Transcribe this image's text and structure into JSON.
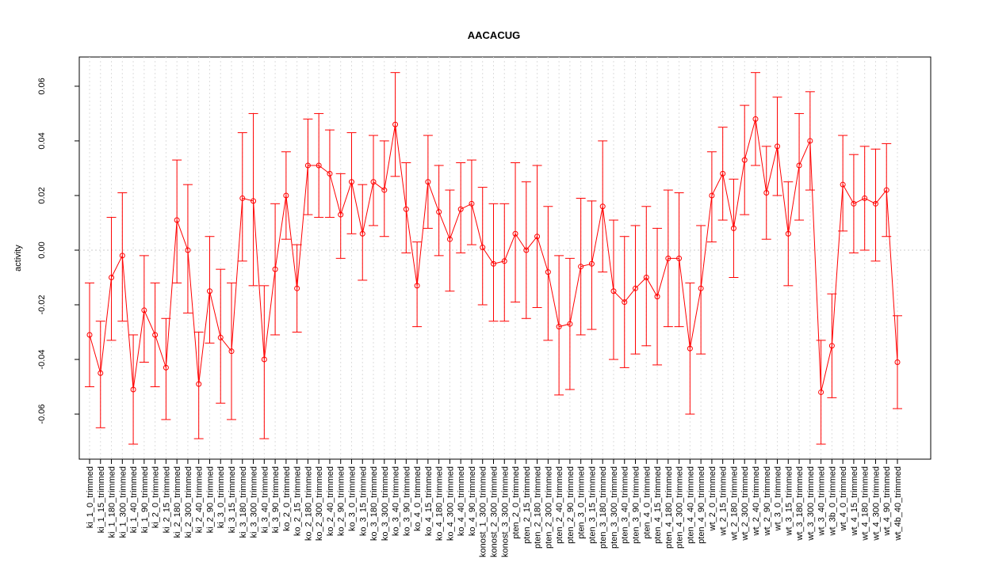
{
  "chart_data": {
    "type": "line",
    "title": "AACACUG",
    "y_label": "activity",
    "color": "#ff0000",
    "grid": true,
    "categories": [
      "ki_1_0_trimmed",
      "ki_1_15_trimmed",
      "ki_1_180_trimmed",
      "ki_1_300_trimmed",
      "ki_1_40_trimmed",
      "ki_1_90_trimmed",
      "ki_2_0_trimmed",
      "ki_2_15_trimmed",
      "ki_2_180_trimmed",
      "ki_2_300_trimmed",
      "ki_2_40_trimmed",
      "ki_2_90_trimmed",
      "ki_3_0_trimmed",
      "ki_3_15_trimmed",
      "ki_3_180_trimmed",
      "ki_3_300_trimmed",
      "ki_3_40_trimmed",
      "ki_3_90_trimmed",
      "ko_2_0_trimmed",
      "ko_2_15_trimmed",
      "ko_2_180_trimmed",
      "ko_2_300_trimmed",
      "ko_2_40_trimmed",
      "ko_2_90_trimmed",
      "ko_3_0_trimmed",
      "ko_3_15_trimmed",
      "ko_3_180_trimmed",
      "ko_3_300_trimmed",
      "ko_3_40_trimmed",
      "ko_3_90_trimmed",
      "ko_4_0_trimmed",
      "ko_4_15_trimmed",
      "ko_4_180_trimmed",
      "ko_4_300_trimmed",
      "ko_4_40_trimmed",
      "ko_4_90_trimmed",
      "konost_1_300_trimmed",
      "konost_2_300_trimmed",
      "konost_3_300_trimmed",
      "pten_2_0_trimmed",
      "pten_2_15_trimmed",
      "pten_2_180_trimmed",
      "pten_2_300_trimmed",
      "pten_2_40_trimmed",
      "pten_2_90_trimmed",
      "pten_3_0_trimmed",
      "pten_3_15_trimmed",
      "pten_3_180_trimmed",
      "pten_3_300_trimmed",
      "pten_3_40_trimmed",
      "pten_3_90_trimmed",
      "pten_4_0_trimmed",
      "pten_4_15_trimmed",
      "pten_4_180_trimmed",
      "pten_4_300_trimmed",
      "pten_4_40_trimmed",
      "pten_4_90_trimmed",
      "wt_2_0_trimmed",
      "wt_2_15_trimmed",
      "wt_2_180_trimmed",
      "wt_2_300_trimmed",
      "wt_2_40_trimmed",
      "wt_2_90_trimmed",
      "wt_3_0_trimmed",
      "wt_3_15_trimmed",
      "wt_3_180_trimmed",
      "wt_3_300_trimmed",
      "wt_3_40_trimmed",
      "wt_3b_0_trimmed",
      "wt_4_0_trimmed",
      "wt_4_15_trimmed",
      "wt_4_180_trimmed",
      "wt_4_300_trimmed",
      "wt_4_90_trimmed",
      "wt_4b_40_trimmed"
    ],
    "values": [
      -0.031,
      -0.045,
      -0.01,
      -0.002,
      -0.051,
      -0.022,
      -0.031,
      -0.043,
      0.011,
      0.0,
      -0.049,
      -0.015,
      -0.032,
      -0.037,
      0.019,
      0.018,
      -0.04,
      -0.007,
      0.02,
      -0.014,
      0.031,
      0.031,
      0.028,
      0.013,
      0.025,
      0.006,
      0.025,
      0.022,
      0.046,
      0.015,
      -0.013,
      0.025,
      0.014,
      0.004,
      0.015,
      0.017,
      0.001,
      -0.005,
      -0.004,
      0.006,
      0.0,
      0.005,
      -0.008,
      -0.028,
      -0.027,
      -0.006,
      -0.005,
      0.016,
      -0.015,
      -0.019,
      -0.014,
      -0.01,
      -0.017,
      -0.003,
      -0.003,
      -0.036,
      -0.014,
      0.02,
      0.028,
      0.008,
      0.033,
      0.048,
      0.021,
      0.038,
      0.006,
      0.031,
      0.04,
      -0.052,
      -0.035,
      0.024,
      0.017,
      0.019,
      0.017,
      0.022,
      -0.041
    ],
    "upper": [
      -0.012,
      -0.026,
      0.012,
      0.021,
      -0.031,
      -0.002,
      -0.012,
      -0.025,
      0.033,
      0.024,
      -0.03,
      0.005,
      -0.007,
      -0.012,
      0.043,
      0.05,
      -0.013,
      0.017,
      0.036,
      0.002,
      0.048,
      0.05,
      0.044,
      0.028,
      0.043,
      0.024,
      0.042,
      0.04,
      0.065,
      0.032,
      0.003,
      0.042,
      0.031,
      0.022,
      0.032,
      0.033,
      0.023,
      0.017,
      0.017,
      0.032,
      0.025,
      0.031,
      0.016,
      -0.002,
      -0.003,
      0.019,
      0.018,
      0.04,
      0.011,
      0.005,
      0.009,
      0.016,
      0.008,
      0.022,
      0.021,
      -0.012,
      0.009,
      0.036,
      0.045,
      0.026,
      0.053,
      0.065,
      0.038,
      0.056,
      0.025,
      0.05,
      0.058,
      -0.033,
      -0.016,
      0.042,
      0.035,
      0.038,
      0.037,
      0.039,
      -0.024
    ],
    "lower": [
      -0.05,
      -0.065,
      -0.033,
      -0.026,
      -0.071,
      -0.041,
      -0.05,
      -0.062,
      -0.012,
      -0.023,
      -0.069,
      -0.034,
      -0.056,
      -0.062,
      -0.004,
      -0.013,
      -0.069,
      -0.031,
      0.004,
      -0.03,
      0.013,
      0.012,
      0.012,
      -0.003,
      0.006,
      -0.011,
      0.009,
      0.005,
      0.027,
      -0.001,
      -0.028,
      0.008,
      -0.002,
      -0.015,
      -0.001,
      0.002,
      -0.02,
      -0.026,
      -0.026,
      -0.019,
      -0.025,
      -0.021,
      -0.033,
      -0.053,
      -0.051,
      -0.031,
      -0.029,
      -0.008,
      -0.04,
      -0.043,
      -0.038,
      -0.035,
      -0.042,
      -0.028,
      -0.028,
      -0.06,
      -0.038,
      0.003,
      0.011,
      -0.01,
      0.013,
      0.031,
      0.004,
      0.02,
      -0.013,
      0.011,
      0.022,
      -0.071,
      -0.054,
      0.007,
      -0.001,
      0.0,
      -0.004,
      0.005,
      -0.058
    ],
    "ylim": [
      -0.0765,
      0.0707
    ],
    "yticks": [
      -0.06,
      -0.04,
      -0.02,
      {
        "value": 0,
        "label": "0.00"
      },
      0.02,
      0.04,
      0.06
    ]
  }
}
